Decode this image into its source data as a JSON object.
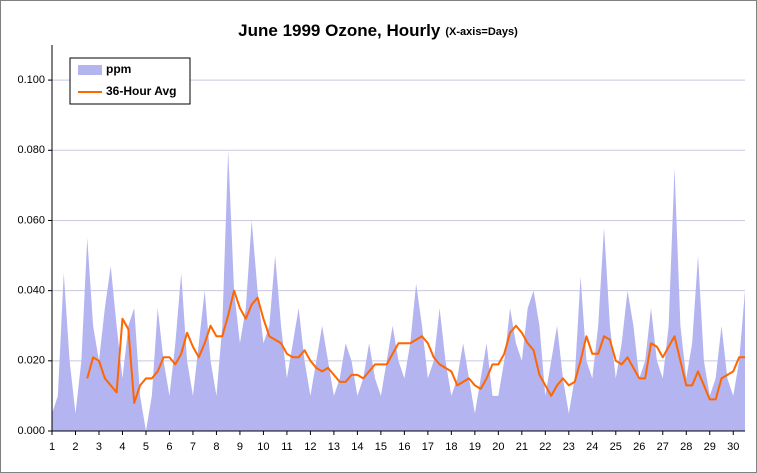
{
  "chart_data": {
    "type": "area_line",
    "title": "June 1999 Ozone, Hourly",
    "subtitle": "(X-axis=Days)",
    "x": [
      1,
      1.25,
      1.5,
      1.75,
      2,
      2.25,
      2.5,
      2.75,
      3,
      3.25,
      3.5,
      3.75,
      4,
      4.25,
      4.5,
      4.75,
      5,
      5.25,
      5.5,
      5.75,
      6,
      6.25,
      6.5,
      6.75,
      7,
      7.25,
      7.5,
      7.75,
      8,
      8.25,
      8.5,
      8.75,
      9,
      9.25,
      9.5,
      9.75,
      10,
      10.25,
      10.5,
      10.75,
      11,
      11.25,
      11.5,
      11.75,
      12,
      12.25,
      12.5,
      12.75,
      13,
      13.25,
      13.5,
      13.75,
      14,
      14.25,
      14.5,
      14.75,
      15,
      15.25,
      15.5,
      15.75,
      16,
      16.25,
      16.5,
      16.75,
      17,
      17.25,
      17.5,
      17.75,
      18,
      18.25,
      18.5,
      18.75,
      19,
      19.25,
      19.5,
      19.75,
      20,
      20.25,
      20.5,
      20.75,
      21,
      21.25,
      21.5,
      21.75,
      22,
      22.25,
      22.5,
      22.75,
      23,
      23.25,
      23.5,
      23.75,
      24,
      24.25,
      24.5,
      24.75,
      25,
      25.25,
      25.5,
      25.75,
      26,
      26.25,
      26.5,
      26.75,
      27,
      27.25,
      27.5,
      27.75,
      28,
      28.25,
      28.5,
      28.75,
      29,
      29.25,
      29.5,
      29.75,
      30,
      30.25,
      30.5
    ],
    "series": [
      {
        "name": "ppm",
        "kind": "area",
        "color": "#b4b4f0",
        "values": [
          0.005,
          0.01,
          0.045,
          0.02,
          0.005,
          0.02,
          0.055,
          0.03,
          0.02,
          0.035,
          0.047,
          0.03,
          0.015,
          0.03,
          0.035,
          0.01,
          0.0,
          0.01,
          0.035,
          0.02,
          0.01,
          0.025,
          0.045,
          0.02,
          0.01,
          0.025,
          0.04,
          0.02,
          0.01,
          0.03,
          0.08,
          0.04,
          0.025,
          0.035,
          0.06,
          0.04,
          0.025,
          0.03,
          0.05,
          0.03,
          0.015,
          0.025,
          0.035,
          0.02,
          0.01,
          0.02,
          0.03,
          0.02,
          0.01,
          0.015,
          0.025,
          0.02,
          0.01,
          0.015,
          0.025,
          0.015,
          0.01,
          0.02,
          0.03,
          0.02,
          0.015,
          0.025,
          0.042,
          0.03,
          0.015,
          0.02,
          0.035,
          0.02,
          0.01,
          0.015,
          0.025,
          0.015,
          0.005,
          0.015,
          0.025,
          0.01,
          0.01,
          0.02,
          0.035,
          0.025,
          0.02,
          0.035,
          0.04,
          0.03,
          0.01,
          0.02,
          0.03,
          0.015,
          0.005,
          0.015,
          0.044,
          0.02,
          0.015,
          0.03,
          0.058,
          0.03,
          0.015,
          0.025,
          0.04,
          0.03,
          0.015,
          0.02,
          0.035,
          0.02,
          0.015,
          0.03,
          0.075,
          0.03,
          0.015,
          0.025,
          0.05,
          0.02,
          0.01,
          0.015,
          0.03,
          0.015,
          0.01,
          0.02,
          0.04
        ]
      },
      {
        "name": "36-Hour Avg",
        "kind": "line",
        "color": "#ff6600",
        "values": [
          null,
          null,
          null,
          null,
          null,
          null,
          0.015,
          0.021,
          0.02,
          0.015,
          0.013,
          0.011,
          0.032,
          0.029,
          0.008,
          0.013,
          0.015,
          0.015,
          0.017,
          0.021,
          0.021,
          0.019,
          0.022,
          0.028,
          0.024,
          0.021,
          0.025,
          0.03,
          0.027,
          0.027,
          0.033,
          0.04,
          0.035,
          0.032,
          0.036,
          0.038,
          0.032,
          0.027,
          0.026,
          0.025,
          0.022,
          0.021,
          0.021,
          0.023,
          0.02,
          0.018,
          0.017,
          0.018,
          0.016,
          0.014,
          0.014,
          0.016,
          0.016,
          0.015,
          0.017,
          0.019,
          0.019,
          0.019,
          0.022,
          0.025,
          0.025,
          0.025,
          0.026,
          0.027,
          0.025,
          0.021,
          0.019,
          0.018,
          0.017,
          0.013,
          0.014,
          0.015,
          0.013,
          0.012,
          0.015,
          0.019,
          0.019,
          0.022,
          0.028,
          0.03,
          0.028,
          0.025,
          0.023,
          0.016,
          0.013,
          0.01,
          0.013,
          0.015,
          0.013,
          0.014,
          0.02,
          0.027,
          0.022,
          0.022,
          0.027,
          0.026,
          0.02,
          0.019,
          0.021,
          0.018,
          0.015,
          0.015,
          0.025,
          0.024,
          0.021,
          0.024,
          0.027,
          0.02,
          0.013,
          0.013,
          0.017,
          0.013,
          0.009,
          0.009,
          0.015,
          0.016,
          0.017,
          0.021,
          0.021
        ]
      }
    ],
    "xlim": [
      1,
      30.5
    ],
    "xticks": [
      1,
      2,
      3,
      4,
      5,
      6,
      7,
      8,
      9,
      10,
      11,
      12,
      13,
      14,
      15,
      16,
      17,
      18,
      19,
      20,
      21,
      22,
      23,
      24,
      25,
      26,
      27,
      28,
      29,
      30
    ],
    "ylim": [
      0,
      0.11
    ],
    "yticks": [
      {
        "value": 0,
        "label": "0.000"
      },
      {
        "value": 0.02,
        "label": "0.020"
      },
      {
        "value": 0.04,
        "label": "0.040"
      },
      {
        "value": 0.06,
        "label": "0.060"
      },
      {
        "value": 0.08,
        "label": "0.080"
      },
      {
        "value": 0.1,
        "label": "0.100"
      }
    ],
    "grid": true,
    "legend": "upper left"
  }
}
